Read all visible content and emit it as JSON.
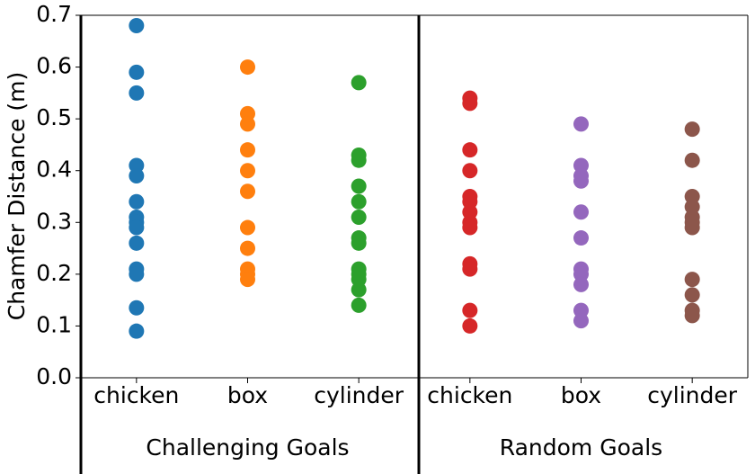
{
  "chart_data": {
    "type": "strip",
    "ylabel": "Chamfer Distance (m)",
    "ylim": [
      0,
      0.7
    ],
    "yticks": [
      {
        "value": 0,
        "label": "0.0"
      },
      0.1,
      0.2,
      0.3,
      0.4,
      0.5,
      0.6,
      0.7
    ],
    "groups": [
      {
        "label": "Challenging Goals",
        "categories": [
          "chicken",
          "box",
          "cylinder"
        ],
        "series": [
          {
            "color": "#1f77b4",
            "values": [
              0.68,
              0.59,
              0.55,
              0.41,
              0.39,
              0.34,
              0.31,
              0.3,
              0.29,
              0.26,
              0.21,
              0.2,
              0.135,
              0.09
            ]
          },
          {
            "color": "#ff7f0e",
            "values": [
              0.6,
              0.51,
              0.49,
              0.44,
              0.4,
              0.36,
              0.29,
              0.25,
              0.21,
              0.2,
              0.19
            ]
          },
          {
            "color": "#2ca02c",
            "values": [
              0.57,
              0.43,
              0.42,
              0.37,
              0.34,
              0.31,
              0.27,
              0.26,
              0.21,
              0.2,
              0.19,
              0.17,
              0.14
            ]
          }
        ]
      },
      {
        "label": "Random Goals",
        "categories": [
          "chicken",
          "box",
          "cylinder"
        ],
        "series": [
          {
            "color": "#d62728",
            "values": [
              0.54,
              0.53,
              0.44,
              0.4,
              0.35,
              0.34,
              0.32,
              0.3,
              0.29,
              0.22,
              0.21,
              0.13,
              0.1
            ]
          },
          {
            "color": "#9467bd",
            "values": [
              0.49,
              0.41,
              0.39,
              0.38,
              0.32,
              0.27,
              0.21,
              0.2,
              0.18,
              0.13,
              0.11
            ]
          },
          {
            "color": "#8c564b",
            "values": [
              0.48,
              0.42,
              0.35,
              0.33,
              0.31,
              0.3,
              0.29,
              0.19,
              0.16,
              0.13,
              0.12
            ]
          }
        ]
      }
    ]
  }
}
